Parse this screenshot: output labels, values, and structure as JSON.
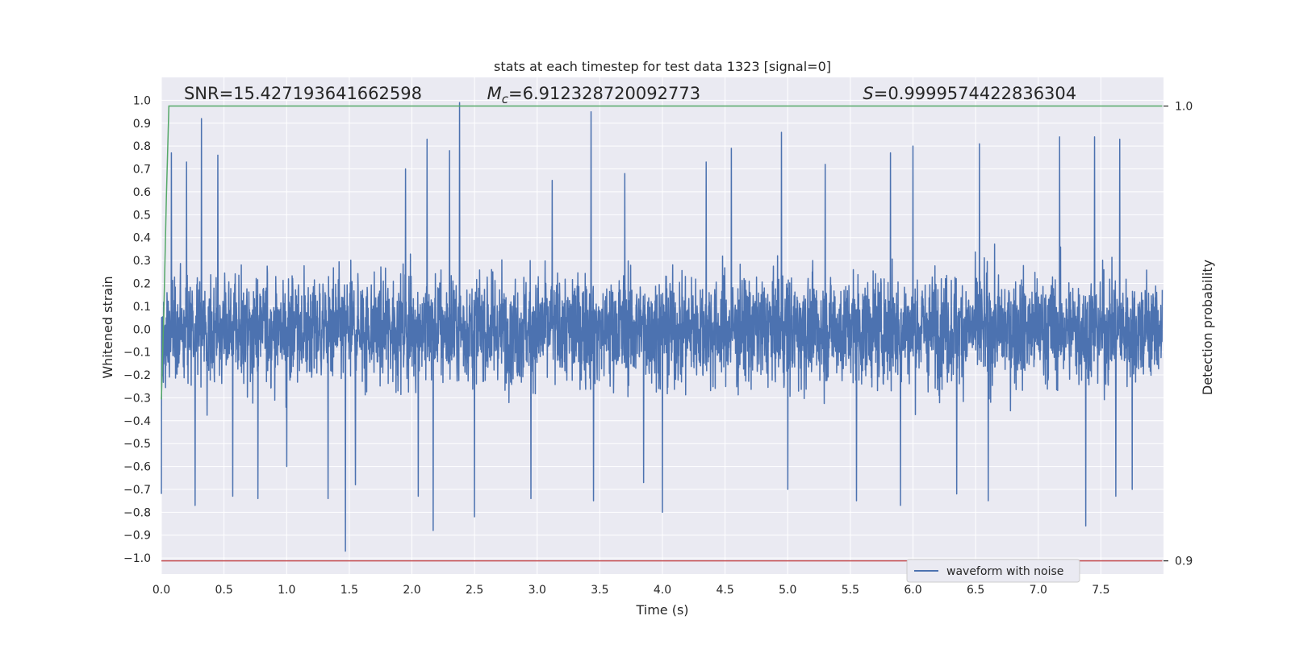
{
  "chart_data": {
    "type": "line",
    "title": "stats at each timestep for test data 1323 [signal=0]",
    "xlabel": "Time (s)",
    "ylabel": "Whitened strain",
    "y2label": "Detection probability",
    "xlim": [
      0.0,
      8.0
    ],
    "ylim": [
      -1.07,
      1.1
    ],
    "y2lim": [
      0.8971,
      1.0063
    ],
    "xticks": [
      0.0,
      0.5,
      1.0,
      1.5,
      2.0,
      2.5,
      3.0,
      3.5,
      4.0,
      4.5,
      5.0,
      5.5,
      6.0,
      6.5,
      7.0,
      7.5
    ],
    "xtick_labels": [
      "0.0",
      "0.5",
      "1.0",
      "1.5",
      "2.0",
      "2.5",
      "3.0",
      "3.5",
      "4.0",
      "4.5",
      "5.0",
      "5.5",
      "6.0",
      "6.5",
      "7.0",
      "7.5"
    ],
    "yticks": [
      1.0,
      0.9,
      0.8,
      0.7,
      0.6,
      0.5,
      0.4,
      0.3,
      0.2,
      0.1,
      0.0,
      -0.1,
      -0.2,
      -0.3,
      -0.4,
      -0.5,
      -0.6,
      -0.7,
      -0.8,
      -0.9,
      -1.0
    ],
    "ytick_labels": [
      "1.0",
      "0.9",
      "0.8",
      "0.7",
      "0.6",
      "0.5",
      "0.4",
      "0.3",
      "0.2",
      "0.1",
      "0.0",
      "−0.1",
      "−0.2",
      "−0.3",
      "−0.4",
      "−0.5",
      "−0.6",
      "−0.7",
      "−0.8",
      "−0.9",
      "−1.0"
    ],
    "y2ticks": [
      1.0,
      0.9
    ],
    "y2tick_labels": [
      "1.0",
      "0.9"
    ],
    "grid": true,
    "legend_position": "bottom-right",
    "series": [
      {
        "name": "waveform with noise",
        "axis": "left",
        "color": "#4c72b0",
        "style": "noise",
        "t_end": 7.99,
        "samples": 4096,
        "envelope": [
          0.55,
          -0.55
        ],
        "spikes": [
          {
            "x": 0.0,
            "y": -0.72
          },
          {
            "x": 0.08,
            "y": 0.77
          },
          {
            "x": 0.2,
            "y": 0.73
          },
          {
            "x": 0.27,
            "y": -0.77
          },
          {
            "x": 0.32,
            "y": 0.92
          },
          {
            "x": 0.45,
            "y": 0.76
          },
          {
            "x": 0.57,
            "y": -0.73
          },
          {
            "x": 0.77,
            "y": -0.74
          },
          {
            "x": 1.0,
            "y": -0.6
          },
          {
            "x": 1.33,
            "y": -0.74
          },
          {
            "x": 1.47,
            "y": -0.97
          },
          {
            "x": 1.55,
            "y": -0.68
          },
          {
            "x": 1.95,
            "y": 0.7
          },
          {
            "x": 2.05,
            "y": -0.73
          },
          {
            "x": 2.12,
            "y": 0.83
          },
          {
            "x": 2.17,
            "y": -0.88
          },
          {
            "x": 2.3,
            "y": 0.78
          },
          {
            "x": 2.38,
            "y": 0.99
          },
          {
            "x": 2.5,
            "y": -0.82
          },
          {
            "x": 2.95,
            "y": -0.74
          },
          {
            "x": 3.12,
            "y": 0.65
          },
          {
            "x": 3.43,
            "y": 0.95
          },
          {
            "x": 3.45,
            "y": -0.75
          },
          {
            "x": 3.7,
            "y": 0.68
          },
          {
            "x": 3.85,
            "y": -0.67
          },
          {
            "x": 4.0,
            "y": -0.8
          },
          {
            "x": 4.35,
            "y": 0.73
          },
          {
            "x": 4.55,
            "y": 0.79
          },
          {
            "x": 4.95,
            "y": 0.86
          },
          {
            "x": 5.0,
            "y": -0.7
          },
          {
            "x": 5.3,
            "y": 0.72
          },
          {
            "x": 5.55,
            "y": -0.75
          },
          {
            "x": 5.82,
            "y": 0.77
          },
          {
            "x": 5.9,
            "y": -0.77
          },
          {
            "x": 6.0,
            "y": 0.8
          },
          {
            "x": 6.35,
            "y": -0.72
          },
          {
            "x": 6.53,
            "y": 0.81
          },
          {
            "x": 6.6,
            "y": -0.75
          },
          {
            "x": 7.17,
            "y": 0.84
          },
          {
            "x": 7.38,
            "y": -0.86
          },
          {
            "x": 7.45,
            "y": 0.84
          },
          {
            "x": 7.62,
            "y": -0.73
          },
          {
            "x": 7.65,
            "y": 0.83
          },
          {
            "x": 7.75,
            "y": -0.7
          }
        ]
      },
      {
        "name": "",
        "axis": "right",
        "color": "#55a868",
        "points": [
          [
            0.0,
            0.9355
          ],
          [
            0.02,
            0.955
          ],
          [
            0.04,
            0.98
          ],
          [
            0.06,
            1.0
          ],
          [
            7.99,
            1.0
          ]
        ]
      },
      {
        "name": "",
        "axis": "right",
        "color": "#c44e52",
        "points": [
          [
            0.0,
            0.9
          ],
          [
            7.99,
            0.9
          ]
        ]
      }
    ],
    "annotations": [
      {
        "text": "SNR=15.427193641662598",
        "x": 0.18
      },
      {
        "text": "=6.912328720092773",
        "symbol": "M",
        "subscript": "c",
        "x": 2.6
      },
      {
        "text": "=0.9999574422836304",
        "symbol": "S",
        "x": 5.6
      }
    ]
  }
}
